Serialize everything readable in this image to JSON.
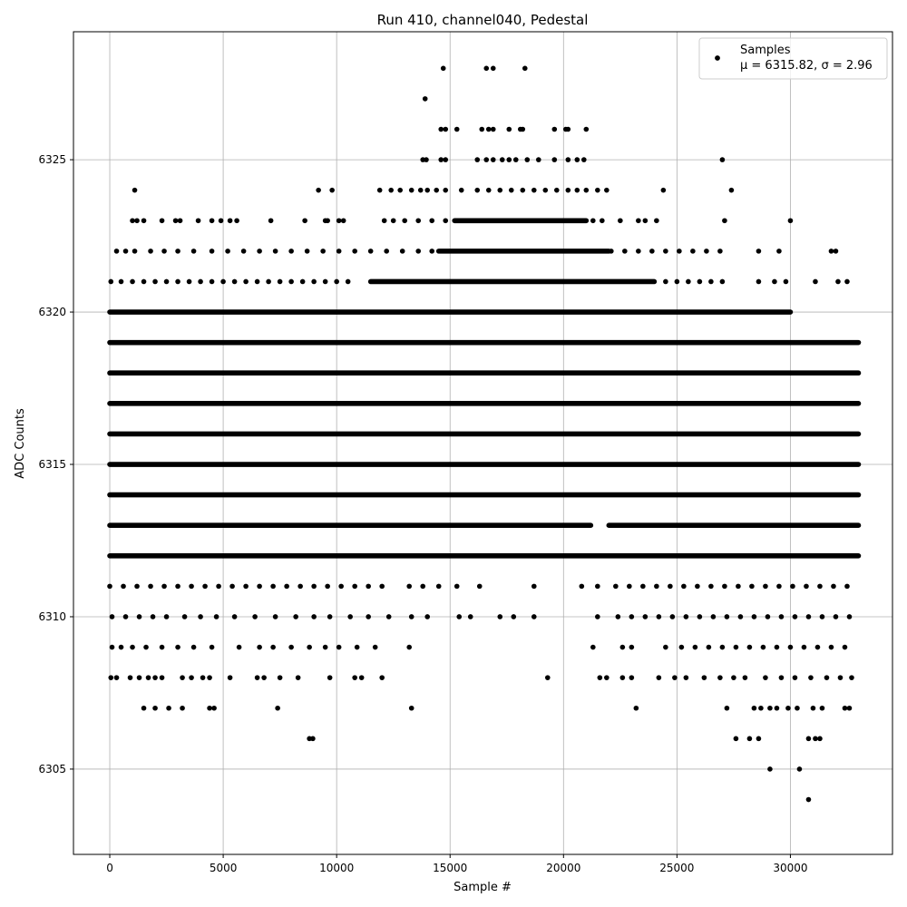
{
  "chart_data": {
    "type": "scatter",
    "title": "Run 410, channel040, Pedestal",
    "xlabel": "Sample #",
    "ylabel": "ADC Counts",
    "xlim": [
      -1600,
      34500
    ],
    "ylim": [
      6302.2,
      6329.2
    ],
    "x_ticks": [
      0,
      5000,
      10000,
      15000,
      20000,
      25000,
      30000
    ],
    "y_ticks": [
      6305,
      6310,
      6315,
      6320,
      6325
    ],
    "grid": true,
    "legend_position": "top-right",
    "legend": {
      "label": "Samples",
      "stats": "μ = 6315.82, σ = 2.96"
    },
    "marker_color": "#000000",
    "series": [
      {
        "name": "Samples",
        "bands": [
          {
            "y": 6312,
            "x_ranges": [
              [
                0,
                33000
              ]
            ]
          },
          {
            "y": 6313,
            "x_ranges": [
              [
                0,
                21200
              ],
              [
                22000,
                33000
              ]
            ]
          },
          {
            "y": 6314,
            "x_ranges": [
              [
                0,
                33000
              ]
            ]
          },
          {
            "y": 6315,
            "x_ranges": [
              [
                0,
                33000
              ]
            ]
          },
          {
            "y": 6316,
            "x_ranges": [
              [
                0,
                33000
              ]
            ]
          },
          {
            "y": 6317,
            "x_ranges": [
              [
                0,
                33000
              ]
            ]
          },
          {
            "y": 6318,
            "x_ranges": [
              [
                0,
                33000
              ]
            ]
          },
          {
            "y": 6319,
            "x_ranges": [
              [
                0,
                33000
              ]
            ]
          },
          {
            "y": 6320,
            "x_ranges": [
              [
                0,
                30000
              ]
            ]
          },
          {
            "y": 6321,
            "x_ranges": [
              [
                11500,
                24000
              ]
            ]
          },
          {
            "y": 6322,
            "x_ranges": [
              [
                14500,
                22000
              ]
            ]
          },
          {
            "y": 6323,
            "x_ranges": [
              [
                15200,
                21000
              ]
            ]
          }
        ],
        "sparse_bands": [
          {
            "y": 6304,
            "x": [
              30800
            ]
          },
          {
            "y": 6305,
            "x": [
              29100,
              30400
            ]
          },
          {
            "y": 6306,
            "x": [
              8800,
              8950,
              27600,
              28200,
              28600,
              30800,
              31100,
              31300
            ]
          },
          {
            "y": 6307,
            "x": [
              1500,
              2000,
              2600,
              3200,
              4400,
              4600,
              7400,
              13300,
              23200,
              27200,
              28400,
              28700,
              29100,
              29400,
              29900,
              30300,
              31000,
              31400,
              32400,
              32600
            ]
          },
          {
            "y": 6308,
            "x": [
              50,
              300,
              900,
              1300,
              1700,
              2000,
              2300,
              3200,
              3600,
              4100,
              4400,
              5300,
              6500,
              6800,
              7500,
              8300,
              9700,
              10800,
              11100,
              12000,
              19300,
              21600,
              21900,
              22600,
              23000,
              24200,
              24900,
              25400,
              26200,
              26900,
              27500,
              28000,
              28900,
              29600,
              30200,
              30900,
              31600,
              32200,
              32700
            ]
          },
          {
            "y": 6309,
            "x": [
              100,
              500,
              1000,
              1600,
              2300,
              3000,
              3700,
              4500,
              5700,
              6600,
              7200,
              8000,
              8800,
              9500,
              10100,
              10900,
              11700,
              13200,
              21300,
              22600,
              23000,
              24500,
              25200,
              25800,
              26400,
              27000,
              27600,
              28200,
              28800,
              29400,
              30000,
              30600,
              31200,
              31800,
              32400
            ]
          },
          {
            "y": 6310,
            "x": [
              100,
              700,
              1300,
              1900,
              2500,
              3300,
              4000,
              4700,
              5500,
              6400,
              7300,
              8200,
              9000,
              9700,
              10600,
              11400,
              12300,
              13300,
              14000,
              15400,
              15900,
              17200,
              17800,
              18700,
              21500,
              22400,
              23000,
              23600,
              24200,
              24800,
              25400,
              26000,
              26600,
              27200,
              27800,
              28400,
              29000,
              29600,
              30200,
              30800,
              31400,
              32000,
              32600
            ]
          },
          {
            "y": 6311,
            "x": [
              0,
              600,
              1200,
              1800,
              2400,
              3000,
              3600,
              4200,
              4800,
              5400,
              6000,
              6600,
              7200,
              7800,
              8400,
              9000,
              9600,
              10200,
              10800,
              11400,
              12000,
              13200,
              13800,
              14500,
              15300,
              16300,
              18700,
              20800,
              21500,
              22300,
              22900,
              23500,
              24100,
              24700,
              25300,
              25900,
              26500,
              27100,
              27700,
              28300,
              28900,
              29500,
              30100,
              30700,
              31300,
              31900,
              32500
            ]
          },
          {
            "y": 6321,
            "x": [
              50,
              500,
              1000,
              1500,
              2000,
              2500,
              3000,
              3500,
              4000,
              4500,
              5000,
              5500,
              6000,
              6500,
              7000,
              7500,
              8000,
              8500,
              9000,
              9500,
              10000,
              10500,
              24500,
              25000,
              25500,
              26000,
              26500,
              27000,
              28600,
              29300,
              29800,
              31100,
              32100,
              32500
            ]
          },
          {
            "y": 6322,
            "x": [
              300,
              700,
              1100,
              1800,
              2400,
              3000,
              3700,
              4500,
              5200,
              5900,
              6600,
              7300,
              8000,
              8700,
              9400,
              10100,
              10800,
              11500,
              12200,
              12900,
              13600,
              14200,
              22100,
              22700,
              23300,
              23900,
              24500,
              25100,
              25700,
              26300,
              26900,
              28600,
              29500,
              31800,
              32000
            ]
          },
          {
            "y": 6323,
            "x": [
              1000,
              1200,
              1500,
              2300,
              2900,
              3100,
              3900,
              4500,
              4900,
              5300,
              5600,
              7100,
              8600,
              9500,
              9600,
              10100,
              10300,
              12100,
              12500,
              13000,
              13600,
              14200,
              14800,
              21300,
              21700,
              22500,
              23300,
              23600,
              24100,
              27100,
              30000
            ]
          },
          {
            "y": 6324,
            "x": [
              1100,
              9200,
              9800,
              11900,
              12400,
              12800,
              13300,
              13700,
              14000,
              14400,
              14800,
              15500,
              16200,
              16700,
              17200,
              17700,
              18200,
              18700,
              19200,
              19700,
              20200,
              20600,
              21000,
              21500,
              21900,
              24400,
              27400
            ]
          },
          {
            "y": 6325,
            "x": [
              13800,
              13950,
              14600,
              14800,
              16200,
              16600,
              16900,
              17300,
              17600,
              17900,
              18400,
              18900,
              19600,
              20200,
              20600,
              20900,
              27000
            ]
          },
          {
            "y": 6326,
            "x": [
              14600,
              14800,
              15300,
              16400,
              16700,
              16900,
              17600,
              18100,
              18200,
              19600,
              20100,
              20200,
              21000
            ]
          },
          {
            "y": 6327,
            "x": [
              13900
            ]
          },
          {
            "y": 6328,
            "x": [
              14700,
              16600,
              16900,
              18300
            ]
          }
        ]
      }
    ]
  }
}
